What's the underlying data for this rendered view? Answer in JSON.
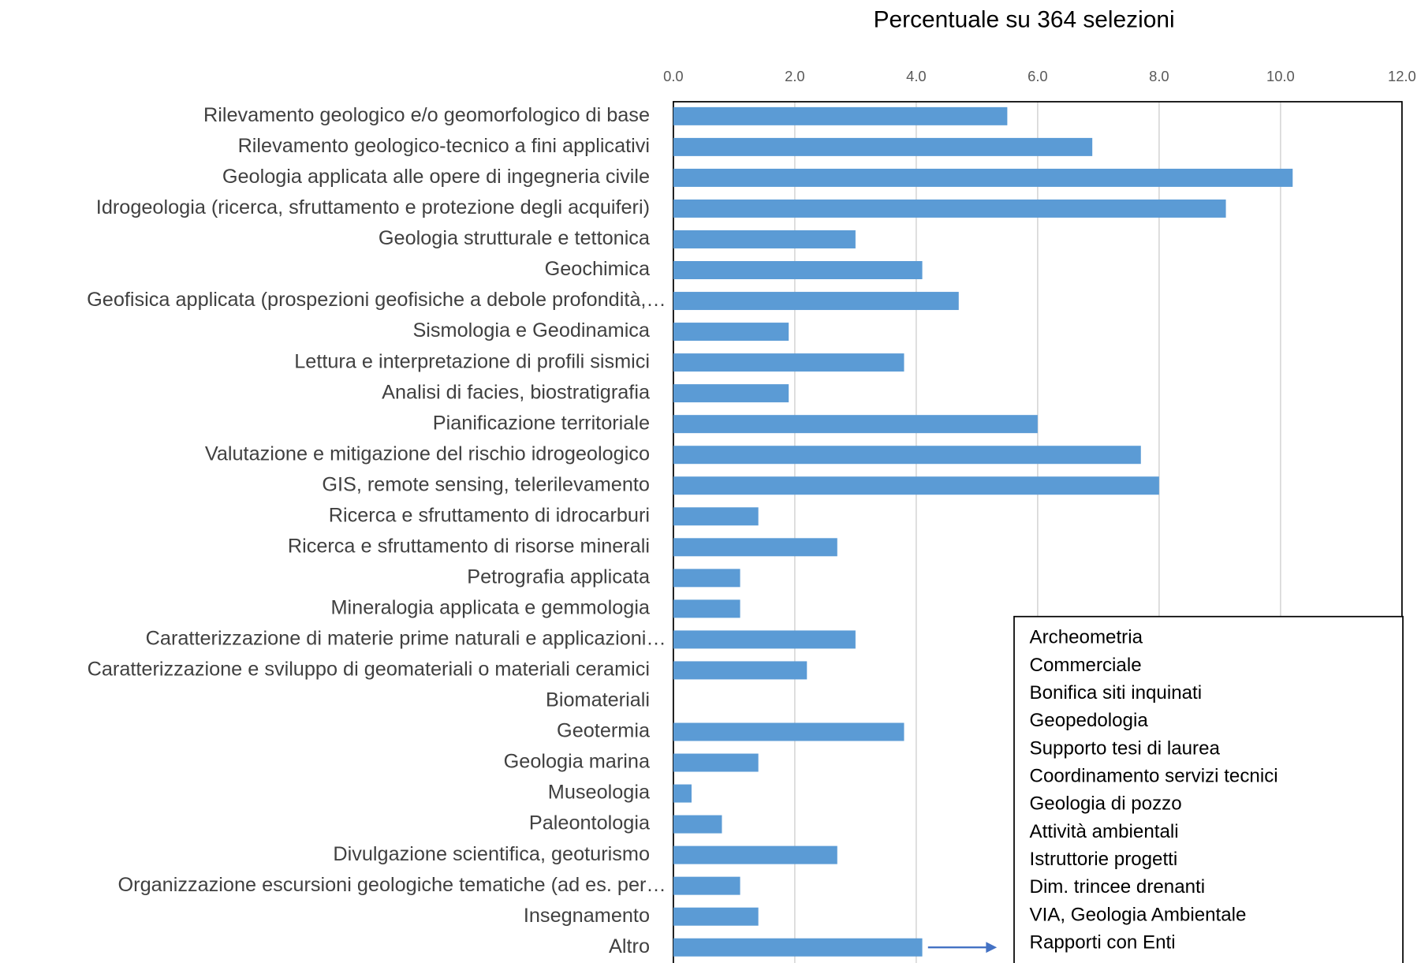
{
  "chart_data": {
    "type": "bar",
    "orientation": "horizontal",
    "title": "Percentuale su 364 selezioni",
    "categories": [
      "Rilevamento geologico e/o geomorfologico di base",
      "Rilevamento geologico-tecnico a fini applicativi",
      "Geologia applicata alle opere di ingegneria civile",
      "Idrogeologia (ricerca, sfruttamento e protezione degli acquiferi)",
      "Geologia strutturale e tettonica",
      "Geochimica",
      "Geofisica applicata (prospezioni geofisiche a debole profondità,…",
      "Sismologia e Geodinamica",
      "Lettura e interpretazione di profili sismici",
      "Analisi di facies, biostratigrafia",
      "Pianificazione territoriale",
      "Valutazione e mitigazione del rischio idrogeologico",
      "GIS, remote sensing, telerilevamento",
      "Ricerca e sfruttamento di idrocarburi",
      "Ricerca e sfruttamento di risorse minerali",
      "Petrografia applicata",
      "Mineralogia applicata e gemmologia",
      "Caratterizzazione di materie prime naturali e applicazioni…",
      "Caratterizzazione e sviluppo di geomateriali o materiali ceramici",
      "Biomateriali",
      "Geotermia",
      "Geologia marina",
      "Museologia",
      "Paleontologia",
      "Divulgazione scientifica, geoturismo",
      "Organizzazione escursioni geologiche tematiche (ad es. per…",
      "Insegnamento",
      "Altro"
    ],
    "values": [
      5.5,
      6.9,
      10.2,
      9.1,
      3.0,
      4.1,
      4.7,
      1.9,
      3.8,
      1.9,
      6.0,
      7.7,
      8.0,
      1.4,
      2.7,
      1.1,
      1.1,
      3.0,
      2.2,
      0,
      3.8,
      1.4,
      0.3,
      0.8,
      2.7,
      1.1,
      1.4,
      4.1
    ],
    "color": "#5b9bd5",
    "xlim": [
      0,
      12
    ],
    "xticks": [
      {
        "value": 0,
        "label": "0.0"
      },
      {
        "value": 2,
        "label": "2.0"
      },
      {
        "value": 4,
        "label": "4.0"
      },
      {
        "value": 6,
        "label": "6.0"
      },
      {
        "value": 8,
        "label": "8.0"
      },
      {
        "value": 10,
        "label": "10.0"
      },
      {
        "value": 12,
        "label": "12.0"
      }
    ],
    "grid": true,
    "annotation": [
      "Archeometria",
      "Commerciale",
      "Bonifica siti inquinati",
      "Geopedologia",
      "Supporto tesi di laurea",
      "Coordinamento servizi tecnici",
      "Geologia di pozzo",
      "Attività ambientali",
      "Istruttorie progetti",
      "Dim. trincee drenanti",
      "VIA, Geologia Ambientale",
      "Rapporti con Enti"
    ]
  }
}
